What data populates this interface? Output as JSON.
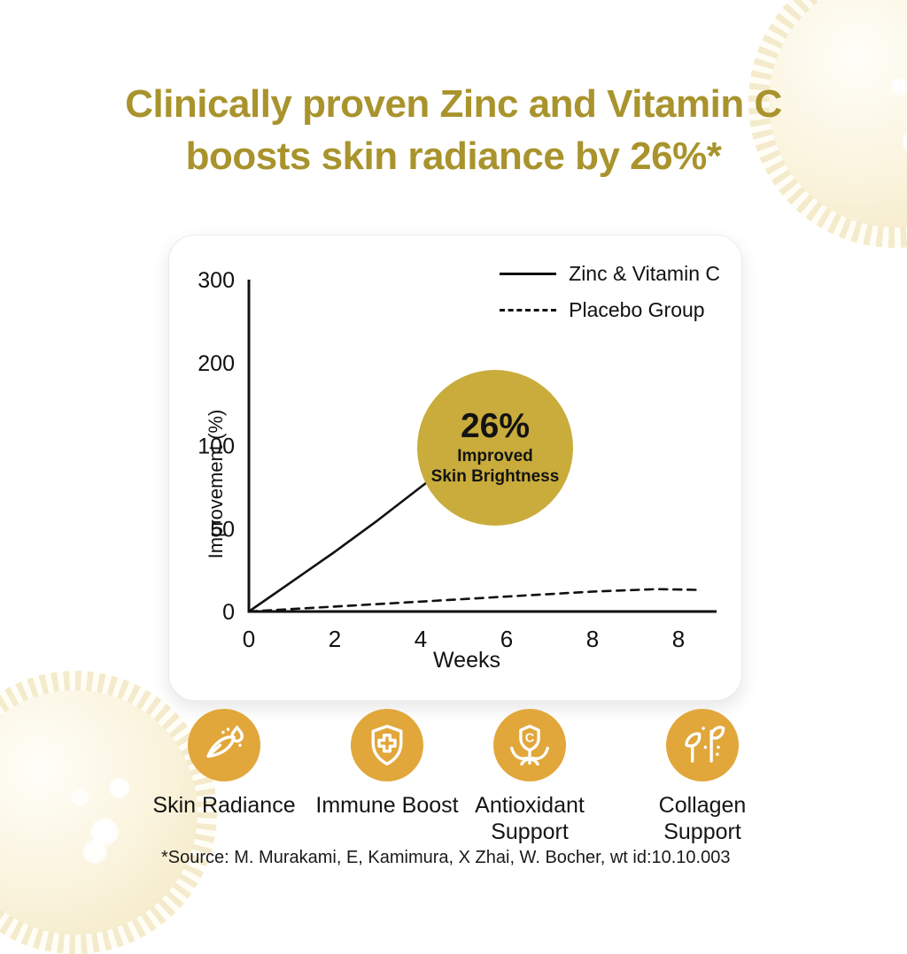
{
  "header": {
    "title_line1": "Clinically proven Zinc and Vitamin C",
    "title_line2": "boosts skin radiance by 26%*",
    "color": "#a9932c"
  },
  "chart_data": {
    "type": "line",
    "title": "",
    "xlabel": "Weeks",
    "ylabel": "Improvement (%)",
    "x_tick_labels": [
      "0",
      "2",
      "4",
      "6",
      "8",
      "8"
    ],
    "y_ticks": [
      0,
      50,
      100,
      200,
      300
    ],
    "y_scale_note": "tick labels equally spaced although values are not",
    "grid": false,
    "legend_position": "top-right inside plot",
    "line_color": "#111111",
    "legend": [
      {
        "name": "Zinc & Vitamin C",
        "style": "solid"
      },
      {
        "name": "Placebo Group",
        "style": "dashed"
      }
    ],
    "series": [
      {
        "name": "Zinc & Vitamin C",
        "style": "solid",
        "points": [
          [
            0,
            0
          ],
          [
            1,
            18
          ],
          [
            2,
            36
          ],
          [
            3,
            55
          ],
          [
            4,
            75
          ],
          [
            4.15,
            78
          ]
        ],
        "note": "curve disappears behind annotation circle after ~week 4"
      },
      {
        "name": "Placebo Group",
        "style": "dashed",
        "points": [
          [
            0,
            0
          ],
          [
            2,
            3
          ],
          [
            4,
            6
          ],
          [
            6,
            9
          ],
          [
            8,
            12
          ],
          [
            9.5,
            13.5
          ],
          [
            10.5,
            13
          ]
        ]
      }
    ],
    "annotation": {
      "value": "26%",
      "line1": "Improved",
      "line2": "Skin Brightness",
      "circle_color": "#c9ac3b"
    }
  },
  "benefits": [
    {
      "label": "Skin Radiance",
      "icon": "feather-droplet-icon"
    },
    {
      "label": "Immune Boost",
      "icon": "shield-cross-icon"
    },
    {
      "label": "Antioxidant Support",
      "icon": "vitamin-c-flower-icon"
    },
    {
      "label": "Collagen Support",
      "icon": "plant-sprig-icon"
    }
  ],
  "badge_color": "#e1a73b",
  "footer": {
    "source": "*Source: M. Murakami, E, Kamimura, X Zhai, W. Bocher, wt id:10.10.003"
  }
}
